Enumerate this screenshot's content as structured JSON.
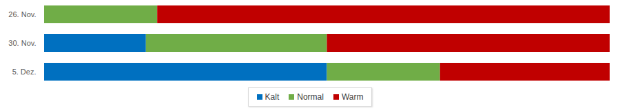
{
  "chart_data": {
    "type": "bar",
    "orientation": "horizontal",
    "stacked": true,
    "categories": [
      "26. Nov.",
      "30. Nov.",
      "5. Dez."
    ],
    "series": [
      {
        "name": "Kalt",
        "color": "#0070c0",
        "values": [
          0,
          18,
          50
        ]
      },
      {
        "name": "Normal",
        "color": "#70ad47",
        "values": [
          20,
          32,
          20
        ]
      },
      {
        "name": "Warm",
        "color": "#c00000",
        "values": [
          80,
          50,
          30
        ]
      }
    ],
    "xlim": [
      0,
      100
    ],
    "tick_labels": "y",
    "legend": "bottom"
  }
}
